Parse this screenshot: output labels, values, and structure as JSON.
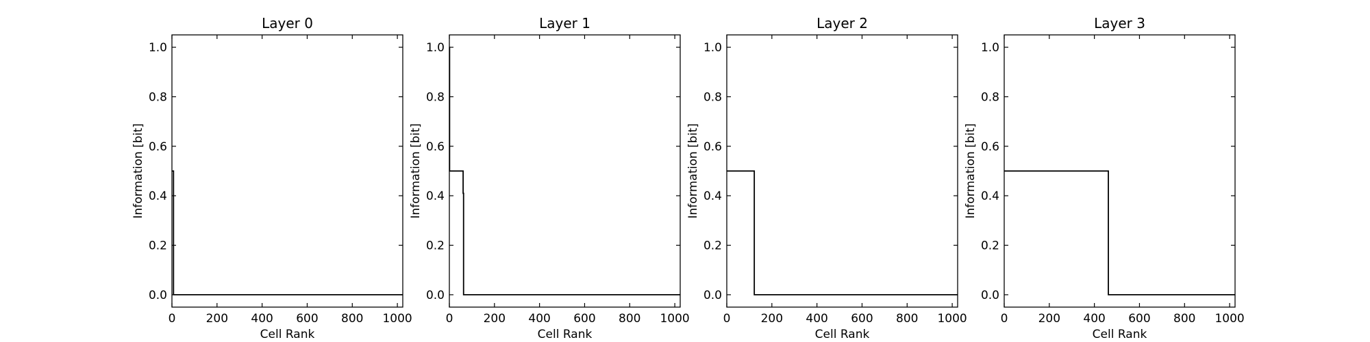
{
  "chart_data": [
    {
      "type": "line",
      "title": "Layer 0",
      "xlabel": "Cell Rank",
      "ylabel": "Information [bit]",
      "xlim": [
        0,
        1024
      ],
      "ylim": [
        -0.05,
        1.05
      ],
      "xticks": [
        "0",
        "200",
        "400",
        "600",
        "800",
        "1000"
      ],
      "yticks": [
        "0.0",
        "0.2",
        "0.4",
        "0.6",
        "0.8",
        "1.0"
      ],
      "grid": false,
      "series": [
        {
          "x": [
            0,
            1,
            1,
            7,
            7,
            1024
          ],
          "y": [
            0.5,
            0.5,
            0.5,
            0.5,
            0.0,
            0.0
          ]
        }
      ]
    },
    {
      "type": "line",
      "title": "Layer 1",
      "xlabel": "Cell Rank",
      "ylabel": "Information [bit]",
      "xlim": [
        0,
        1024
      ],
      "ylim": [
        -0.05,
        1.05
      ],
      "xticks": [
        "0",
        "200",
        "400",
        "600",
        "800",
        "1000"
      ],
      "yticks": [
        "0.0",
        "0.2",
        "0.4",
        "0.6",
        "0.8",
        "1.0"
      ],
      "grid": false,
      "series": [
        {
          "x": [
            0,
            1,
            1,
            3,
            3,
            61,
            61,
            63,
            63,
            1024
          ],
          "y": [
            1.0,
            1.0,
            0.5,
            0.5,
            0.5,
            0.5,
            0.41,
            0.41,
            0.0,
            0.0
          ]
        }
      ]
    },
    {
      "type": "line",
      "title": "Layer 2",
      "xlabel": "Cell Rank",
      "ylabel": "Information [bit]",
      "xlim": [
        0,
        1024
      ],
      "ylim": [
        -0.05,
        1.05
      ],
      "xticks": [
        "0",
        "200",
        "400",
        "600",
        "800",
        "1000"
      ],
      "yticks": [
        "0.0",
        "0.2",
        "0.4",
        "0.6",
        "0.8",
        "1.0"
      ],
      "grid": false,
      "series": [
        {
          "x": [
            0,
            122,
            122,
            1024
          ],
          "y": [
            0.5,
            0.5,
            0.0,
            0.0
          ]
        }
      ]
    },
    {
      "type": "line",
      "title": "Layer 3",
      "xlabel": "Cell Rank",
      "ylabel": "Information [bit]",
      "xlim": [
        0,
        1024
      ],
      "ylim": [
        -0.05,
        1.05
      ],
      "xticks": [
        "0",
        "200",
        "400",
        "600",
        "800",
        "1000"
      ],
      "yticks": [
        "0.0",
        "0.2",
        "0.4",
        "0.6",
        "0.8",
        "1.0"
      ],
      "grid": false,
      "series": [
        {
          "x": [
            0,
            462,
            462,
            1024
          ],
          "y": [
            0.5,
            0.5,
            0.0,
            0.0
          ]
        }
      ]
    }
  ]
}
